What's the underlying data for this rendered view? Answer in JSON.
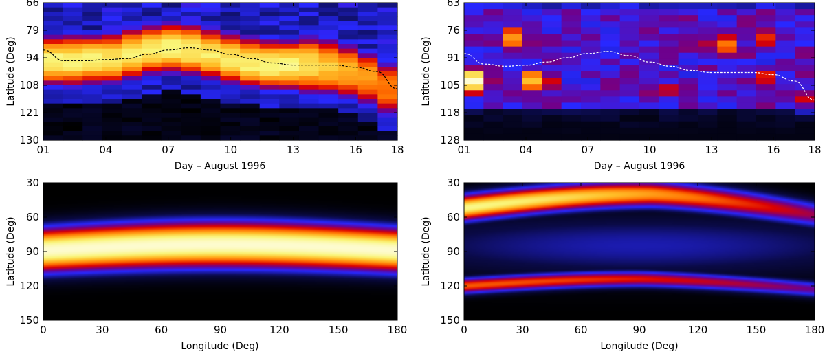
{
  "chart_data": [
    {
      "type": "heatmap",
      "panel": "top-left",
      "xlabel": "Day – August 1996",
      "ylabel": "Latitude (Deg)",
      "x_ticks": [
        "01",
        "04",
        "07",
        "10",
        "13",
        "16",
        "18"
      ],
      "y_ticks": [
        "66",
        "79",
        "94",
        "108",
        "121",
        "130"
      ],
      "xlim": [
        1,
        18
      ],
      "ylim": [
        66,
        130
      ],
      "colormap": "black-blue-red-yellow-white",
      "columns": 18,
      "band_center_latitude": [
        93,
        93,
        92.5,
        92,
        90,
        88,
        87,
        88,
        90,
        92,
        94,
        95,
        95,
        95,
        96,
        98,
        101,
        106
      ],
      "band_halfwidth_deg": [
        9,
        9,
        9,
        9,
        9,
        9,
        9,
        9,
        9,
        9,
        9,
        9,
        9,
        10,
        10,
        10,
        10,
        10
      ],
      "band_intensity": [
        0.86,
        0.86,
        0.85,
        0.84,
        0.84,
        0.85,
        0.86,
        0.85,
        0.84,
        0.84,
        0.86,
        0.87,
        0.86,
        0.82,
        0.78,
        0.74,
        0.7,
        0.66
      ],
      "trend_line": {
        "style": "dashed",
        "color": "#000000",
        "x": [
          1,
          2,
          3,
          4,
          5,
          6,
          7,
          8,
          9,
          10,
          11,
          12,
          13,
          14,
          15,
          16,
          17,
          18
        ],
        "y": [
          88,
          93,
          93,
          92.5,
          92,
          90,
          88,
          87,
          88,
          90,
          92,
          94,
          95,
          95,
          95,
          96,
          98,
          106
        ]
      }
    },
    {
      "type": "heatmap",
      "panel": "top-right",
      "xlabel": "Day – August 1996",
      "ylabel": "Latitude (Deg)",
      "x_ticks": [
        "01",
        "04",
        "07",
        "10",
        "13",
        "16",
        "18"
      ],
      "y_ticks": [
        "63",
        "76",
        "91",
        "105",
        "118",
        "128"
      ],
      "xlim": [
        1,
        18
      ],
      "ylim": [
        63,
        128
      ],
      "colormap": "black-blue-red-yellow-white",
      "columns": 18,
      "hotspots": [
        {
          "day": 1.5,
          "lat": 100,
          "intensity": 0.95
        },
        {
          "day": 3.5,
          "lat": 80,
          "intensity": 0.75
        },
        {
          "day": 4.5,
          "lat": 100,
          "intensity": 0.8
        },
        {
          "day": 10.5,
          "lat": 104,
          "intensity": 0.55
        },
        {
          "day": 13.5,
          "lat": 83,
          "intensity": 0.7
        },
        {
          "day": 15.5,
          "lat": 80,
          "intensity": 0.6
        },
        {
          "day": 15.5,
          "lat": 99,
          "intensity": 0.55
        },
        {
          "day": 17.5,
          "lat": 108,
          "intensity": 0.5
        }
      ],
      "trend_line": {
        "style": "dashed",
        "color": "#ffffff",
        "x": [
          1,
          2,
          3,
          4,
          5,
          6,
          7,
          8,
          9,
          10,
          11,
          12,
          13,
          14,
          15,
          16,
          17,
          18
        ],
        "y": [
          87,
          92,
          93,
          92.5,
          91,
          89,
          87,
          86,
          88,
          91,
          93,
          95,
          96,
          96,
          96,
          97,
          100,
          109
        ]
      }
    },
    {
      "type": "heatmap",
      "panel": "bottom-left",
      "xlabel": "Longitude (Deg)",
      "ylabel": "Latitude (Deg)",
      "x_ticks": [
        "0",
        "30",
        "60",
        "90",
        "120",
        "150",
        "180"
      ],
      "y_ticks": [
        "30",
        "60",
        "90",
        "120",
        "150"
      ],
      "xlim": [
        0,
        180
      ],
      "ylim": [
        30,
        150
      ],
      "colormap": "black-blue-red-yellow-white",
      "bands": [
        {
          "center_lat_edge": 89,
          "center_lat_mid": 84,
          "sigma": 14,
          "amplitude": 0.95
        }
      ]
    },
    {
      "type": "heatmap",
      "panel": "bottom-right",
      "xlabel": "Longitude (Deg)",
      "ylabel": "Latitude (Deg)",
      "x_ticks": [
        "0",
        "30",
        "60",
        "90",
        "120",
        "150",
        "180"
      ],
      "y_ticks": [
        "30",
        "60",
        "90",
        "120",
        "150"
      ],
      "xlim": [
        0,
        180
      ],
      "ylim": [
        30,
        150
      ],
      "colormap": "black-blue-red-yellow-white",
      "bands": [
        {
          "center_lat_start": 52,
          "center_lat_peak": 40,
          "peak_lon": 95,
          "center_lat_end": 58,
          "sigma": 8,
          "amplitude_start": 0.88,
          "amplitude_end": 0.45
        },
        {
          "center_lat_start": 120,
          "center_lat_peak": 114,
          "peak_lon": 90,
          "center_lat_end": 123,
          "sigma": 5,
          "amplitude_start": 0.62,
          "amplitude_end": 0.4
        }
      ]
    }
  ]
}
